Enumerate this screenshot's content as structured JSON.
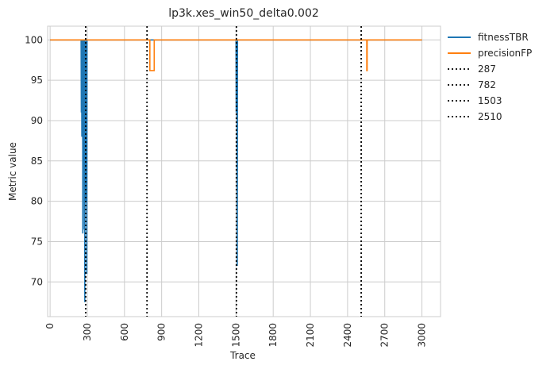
{
  "chart_data": {
    "type": "line",
    "title": "lp3k.xes_win50_delta0.002",
    "xlabel": "Trace",
    "ylabel": "Metric value",
    "xlim": [
      -20,
      3150
    ],
    "ylim": [
      65.7,
      101.7
    ],
    "xticks": [
      0,
      300,
      600,
      900,
      1200,
      1500,
      1800,
      2100,
      2400,
      2700,
      3000
    ],
    "yticks": [
      70,
      75,
      80,
      85,
      90,
      95,
      100
    ],
    "xtick_rotation": 90,
    "grid": true,
    "legend_position": "outside-upper-right",
    "series": [
      {
        "name": "fitnessTBR",
        "color": "#1f77b4",
        "points": [
          [
            0,
            100
          ],
          [
            250,
            100
          ],
          [
            252,
            91
          ],
          [
            254,
            100
          ],
          [
            256,
            88
          ],
          [
            258,
            100
          ],
          [
            260,
            95
          ],
          [
            262,
            100
          ],
          [
            264,
            76
          ],
          [
            266,
            100
          ],
          [
            268,
            85
          ],
          [
            270,
            100
          ],
          [
            272,
            92
          ],
          [
            274,
            100
          ],
          [
            276,
            76.5
          ],
          [
            278,
            100
          ],
          [
            280,
            67.5
          ],
          [
            282,
            100
          ],
          [
            284,
            88
          ],
          [
            286,
            100
          ],
          [
            288,
            80
          ],
          [
            290,
            100
          ],
          [
            292,
            95
          ],
          [
            294,
            100
          ],
          [
            296,
            71
          ],
          [
            298,
            100
          ],
          [
            1500,
            100
          ],
          [
            1502,
            91
          ],
          [
            1504,
            100
          ],
          [
            1506,
            93
          ],
          [
            1508,
            100
          ],
          [
            1510,
            72
          ],
          [
            1512,
            100
          ],
          [
            3000,
            100
          ]
        ]
      },
      {
        "name": "precisionFP",
        "color": "#ff7f0e",
        "points": [
          [
            0,
            100
          ],
          [
            805,
            100
          ],
          [
            805,
            96.2
          ],
          [
            840,
            96.2
          ],
          [
            840,
            100
          ],
          [
            2555,
            100
          ],
          [
            2555,
            96.2
          ],
          [
            2558,
            96.2
          ],
          [
            2558,
            100
          ],
          [
            3000,
            100
          ]
        ]
      }
    ],
    "vlines": [
      {
        "name": "287",
        "x": 287,
        "color": "#000000",
        "style": "dotted"
      },
      {
        "name": "782",
        "x": 782,
        "color": "#000000",
        "style": "dotted"
      },
      {
        "name": "1503",
        "x": 1503,
        "color": "#000000",
        "style": "dotted"
      },
      {
        "name": "2510",
        "x": 2510,
        "color": "#000000",
        "style": "dotted"
      }
    ]
  }
}
